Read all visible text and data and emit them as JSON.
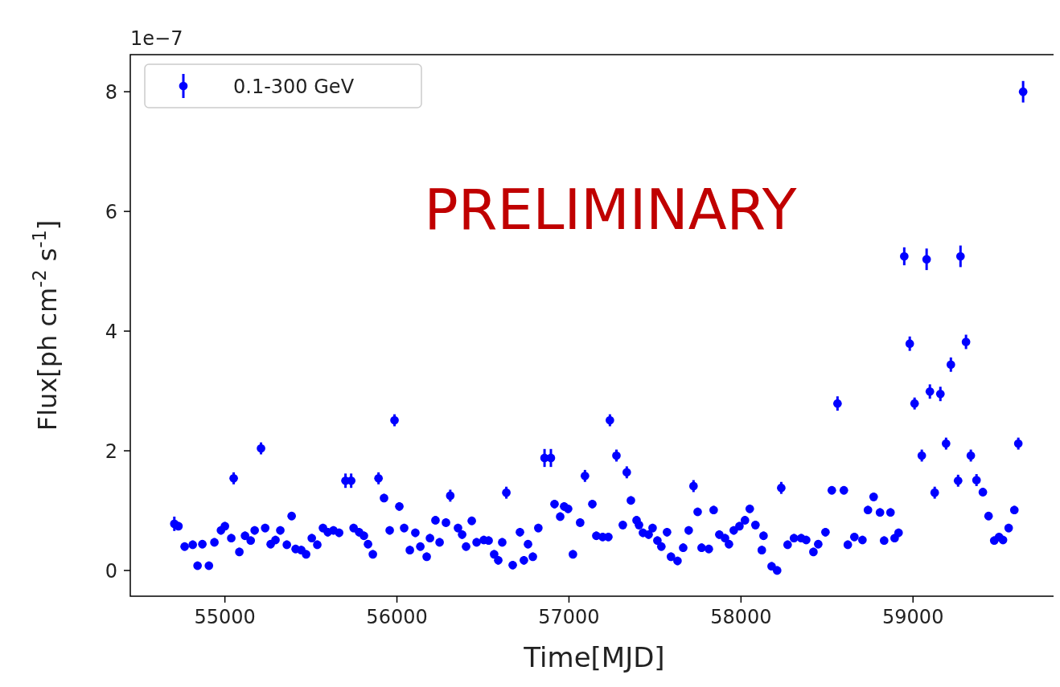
{
  "chart_data": {
    "type": "scatter",
    "xlabel": "Time[MJD]",
    "ylabel": "Flux[ph cm$^{-2}$ s$^{-1}$]",
    "annotations": [
      "1e−7",
      "PRELIMINARY"
    ],
    "xlim": [
      54450,
      59845
    ],
    "xticks": [
      55000,
      56000,
      57000,
      58000,
      59000
    ],
    "ylim": [
      -0.43,
      8.62
    ],
    "yticks": [
      0,
      2,
      4,
      6,
      8
    ],
    "grid": false,
    "legend": "top left",
    "marker": "circle",
    "series": [
      {
        "name": "0.1-300 GeV",
        "color": "#0000ff",
        "x": [
          54706,
          54730,
          54766,
          54813,
          54841,
          54869,
          54907,
          54939,
          54977,
          55000,
          55037,
          55051,
          55084,
          55117,
          55150,
          55173,
          55210,
          55234,
          55266,
          55294,
          55322,
          55360,
          55388,
          55411,
          55444,
          55472,
          55505,
          55537,
          55570,
          55598,
          55631,
          55664,
          55701,
          55734,
          55748,
          55780,
          55808,
          55832,
          55860,
          55893,
          55925,
          55958,
          55986,
          56014,
          56042,
          56075,
          56107,
          56136,
          56173,
          56192,
          56224,
          56248,
          56285,
          56310,
          56355,
          56379,
          56402,
          56435,
          56463,
          56505,
          56533,
          56565,
          56589,
          56612,
          56636,
          56673,
          56715,
          56738,
          56762,
          56790,
          56822,
          56858,
          56895,
          56916,
          56949,
          56972,
          56995,
          57023,
          57065,
          57093,
          57136,
          57159,
          57196,
          57229,
          57238,
          57276,
          57313,
          57336,
          57360,
          57393,
          57407,
          57430,
          57463,
          57486,
          57514,
          57537,
          57570,
          57593,
          57631,
          57664,
          57696,
          57724,
          57748,
          57771,
          57813,
          57841,
          57874,
          57907,
          57930,
          57958,
          57991,
          58023,
          58051,
          58084,
          58121,
          58131,
          58178,
          58210,
          58234,
          58271,
          58308,
          58350,
          58379,
          58421,
          58449,
          58491,
          58528,
          58561,
          58598,
          58621,
          58659,
          58706,
          58738,
          58771,
          58808,
          58832,
          58869,
          58893,
          58916,
          58949,
          58981,
          59009,
          59051,
          59079,
          59098,
          59126,
          59159,
          59192,
          59220,
          59262,
          59276,
          59308,
          59336,
          59369,
          59406,
          59439,
          59472,
          59500,
          59523,
          59556,
          59589,
          59612,
          59640
        ],
        "values": [
          0.78,
          0.74,
          0.4,
          0.43,
          0.08,
          0.44,
          0.08,
          0.47,
          0.67,
          0.74,
          0.54,
          1.54,
          0.31,
          0.58,
          0.5,
          0.67,
          2.04,
          0.71,
          0.44,
          0.51,
          0.67,
          0.43,
          0.91,
          0.36,
          0.34,
          0.27,
          0.54,
          0.43,
          0.71,
          0.64,
          0.67,
          0.63,
          1.5,
          1.5,
          0.71,
          0.64,
          0.58,
          0.44,
          0.27,
          1.54,
          1.21,
          0.67,
          2.51,
          1.07,
          0.71,
          0.34,
          0.63,
          0.4,
          0.23,
          0.54,
          0.84,
          0.47,
          0.8,
          1.25,
          0.71,
          0.6,
          0.4,
          0.83,
          0.47,
          0.51,
          0.5,
          0.27,
          0.17,
          0.47,
          1.3,
          0.09,
          0.64,
          0.17,
          0.44,
          0.23,
          0.71,
          1.88,
          1.88,
          1.11,
          0.9,
          1.07,
          1.03,
          0.27,
          0.8,
          1.58,
          1.11,
          0.58,
          0.56,
          0.56,
          2.51,
          1.92,
          0.76,
          1.64,
          1.17,
          0.84,
          0.76,
          0.63,
          0.6,
          0.71,
          0.5,
          0.4,
          0.64,
          0.23,
          0.16,
          0.38,
          0.67,
          1.41,
          0.98,
          0.38,
          0.36,
          1.01,
          0.6,
          0.54,
          0.44,
          0.67,
          0.74,
          0.84,
          1.03,
          0.76,
          0.34,
          0.58,
          0.07,
          0.0,
          1.38,
          0.43,
          0.54,
          0.54,
          0.51,
          0.31,
          0.44,
          0.64,
          1.34,
          2.79,
          1.34,
          0.43,
          0.56,
          0.51,
          1.01,
          1.23,
          0.97,
          0.5,
          0.97,
          0.54,
          0.63,
          5.25,
          3.79,
          2.79,
          1.92,
          5.2,
          2.99,
          1.3,
          2.95,
          2.12,
          3.44,
          1.5,
          5.25,
          3.82,
          1.92,
          1.51,
          1.31,
          0.91,
          0.5,
          0.56,
          0.51,
          0.71,
          1.01,
          2.12,
          8.0
        ],
        "errors": [
          0.12,
          0.07,
          0.07,
          0.07,
          0.07,
          0.07,
          0.07,
          0.07,
          0.07,
          0.07,
          0.07,
          0.1,
          0.07,
          0.07,
          0.07,
          0.07,
          0.1,
          0.07,
          0.07,
          0.07,
          0.07,
          0.07,
          0.07,
          0.07,
          0.07,
          0.07,
          0.07,
          0.07,
          0.07,
          0.07,
          0.07,
          0.07,
          0.12,
          0.12,
          0.07,
          0.07,
          0.07,
          0.07,
          0.07,
          0.1,
          0.07,
          0.07,
          0.1,
          0.07,
          0.07,
          0.07,
          0.07,
          0.07,
          0.07,
          0.07,
          0.07,
          0.07,
          0.07,
          0.1,
          0.07,
          0.07,
          0.07,
          0.07,
          0.07,
          0.07,
          0.07,
          0.07,
          0.07,
          0.07,
          0.1,
          0.07,
          0.07,
          0.07,
          0.07,
          0.07,
          0.07,
          0.15,
          0.15,
          0.07,
          0.07,
          0.07,
          0.07,
          0.07,
          0.07,
          0.1,
          0.07,
          0.07,
          0.07,
          0.07,
          0.1,
          0.1,
          0.07,
          0.1,
          0.07,
          0.07,
          0.07,
          0.07,
          0.07,
          0.07,
          0.07,
          0.07,
          0.07,
          0.07,
          0.07,
          0.07,
          0.07,
          0.1,
          0.07,
          0.07,
          0.07,
          0.07,
          0.07,
          0.07,
          0.07,
          0.07,
          0.07,
          0.07,
          0.07,
          0.07,
          0.07,
          0.07,
          0.07,
          0.07,
          0.1,
          0.07,
          0.07,
          0.07,
          0.07,
          0.07,
          0.07,
          0.07,
          0.07,
          0.12,
          0.07,
          0.07,
          0.07,
          0.07,
          0.07,
          0.07,
          0.07,
          0.07,
          0.07,
          0.07,
          0.07,
          0.15,
          0.12,
          0.1,
          0.1,
          0.18,
          0.12,
          0.1,
          0.12,
          0.1,
          0.12,
          0.1,
          0.18,
          0.12,
          0.1,
          0.1,
          0.07,
          0.07,
          0.07,
          0.07,
          0.07,
          0.07,
          0.07,
          0.1,
          0.18
        ]
      }
    ]
  }
}
